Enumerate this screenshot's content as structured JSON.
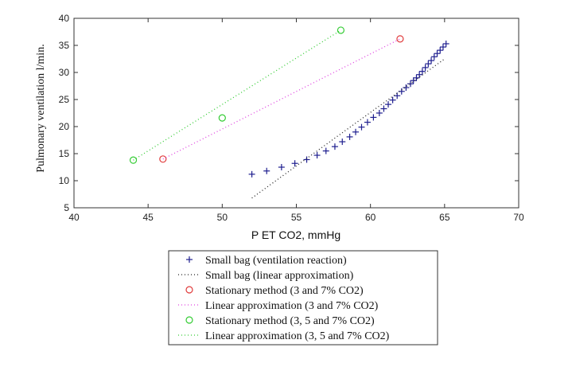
{
  "chart_data": {
    "type": "scatter",
    "xlabel": "P ET CO2, mmHg",
    "ylabel": "Pulmonary ventilation l/min.",
    "xlim": [
      40,
      70
    ],
    "ylim": [
      5,
      40
    ],
    "xticks": [
      40,
      45,
      50,
      55,
      60,
      65,
      70
    ],
    "yticks": [
      5,
      10,
      15,
      20,
      25,
      30,
      35,
      40
    ],
    "grid": false,
    "legend_position": "bottom-center",
    "series": [
      {
        "name": "Small bag (ventilation reaction)",
        "kind": "marker",
        "marker": "plus",
        "color": "#1f1f8f",
        "x": [
          52.0,
          53.0,
          54.0,
          54.9,
          55.7,
          56.4,
          57.0,
          57.6,
          58.1,
          58.6,
          59.0,
          59.4,
          59.8,
          60.2,
          60.6,
          60.9,
          61.2,
          61.5,
          61.8,
          62.1,
          62.4,
          62.7,
          62.9,
          63.1,
          63.3,
          63.5,
          63.7,
          63.9,
          64.1,
          64.3,
          64.5,
          64.7,
          64.9,
          65.1
        ],
        "y": [
          11.2,
          11.8,
          12.5,
          13.2,
          13.9,
          14.7,
          15.5,
          16.3,
          17.2,
          18.1,
          19.0,
          19.9,
          20.8,
          21.7,
          22.5,
          23.3,
          24.1,
          24.9,
          25.7,
          26.5,
          27.2,
          27.9,
          28.5,
          29.0,
          29.6,
          30.2,
          30.9,
          31.6,
          32.2,
          32.9,
          33.5,
          34.1,
          34.7,
          35.3
        ]
      },
      {
        "name": "Small bag (linear approximation)",
        "kind": "line",
        "dash": "1,3",
        "color": "#222222",
        "x": [
          52.0,
          65.0
        ],
        "y": [
          6.8,
          32.5
        ]
      },
      {
        "name": "Stationary method (3 and 7% CO2)",
        "kind": "marker",
        "marker": "circle",
        "color": "#e03a3a",
        "x": [
          46.0,
          62.0
        ],
        "y": [
          14.0,
          36.2
        ]
      },
      {
        "name": "Linear approximation (3 and 7% CO2)",
        "kind": "line",
        "dash": "1,3",
        "color": "#e040e0",
        "x": [
          46.0,
          62.0
        ],
        "y": [
          14.0,
          36.2
        ]
      },
      {
        "name": "Stationary method (3, 5 and 7% CO2)",
        "kind": "marker",
        "marker": "circle",
        "color": "#33cc33",
        "x": [
          44.0,
          50.0,
          58.0
        ],
        "y": [
          13.8,
          21.6,
          37.8
        ]
      },
      {
        "name": "Linear approximation (3, 5 and 7% CO2)",
        "kind": "line",
        "dash": "1,3",
        "color": "#33cc33",
        "x": [
          44.0,
          58.0
        ],
        "y": [
          13.8,
          37.8
        ]
      }
    ]
  }
}
